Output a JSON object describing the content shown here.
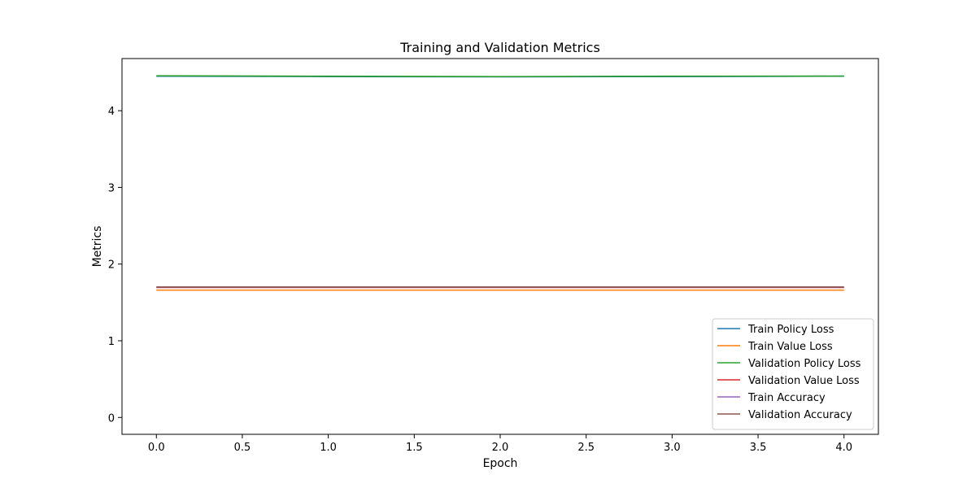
{
  "chart_data": {
    "type": "line",
    "title": "Training and Validation Metrics",
    "xlabel": "Epoch",
    "ylabel": "Metrics",
    "x": [
      0,
      1,
      2,
      3,
      4
    ],
    "xlim": [
      -0.2,
      4.2
    ],
    "ylim": [
      -0.22,
      4.68
    ],
    "xticks": [
      0.0,
      0.5,
      1.0,
      1.5,
      2.0,
      2.5,
      3.0,
      3.5,
      4.0
    ],
    "xtick_labels": [
      "0.0",
      "0.5",
      "1.0",
      "1.5",
      "2.0",
      "2.5",
      "3.0",
      "3.5",
      "4.0"
    ],
    "yticks": [
      0,
      1,
      2,
      3,
      4
    ],
    "ytick_labels": [
      "0",
      "1",
      "2",
      "3",
      "4"
    ],
    "grid": false,
    "legend_position": "bottom-right",
    "series": [
      {
        "name": "Train Policy Loss",
        "color": "#1f77b4",
        "values": [
          4.45,
          4.445,
          4.442,
          4.445,
          4.45
        ]
      },
      {
        "name": "Train Value Loss",
        "color": "#ff7f0e",
        "values": [
          1.66,
          1.66,
          1.66,
          1.66,
          1.66
        ]
      },
      {
        "name": "Validation Policy Loss",
        "color": "#2ca02c",
        "values": [
          4.455,
          4.45,
          4.445,
          4.45,
          4.452
        ]
      },
      {
        "name": "Validation Value Loss",
        "color": "#d62728",
        "values": [
          1.695,
          1.695,
          1.695,
          1.695,
          1.695
        ]
      },
      {
        "name": "Train Accuracy",
        "color": "#9467bd",
        "values": [
          1.7,
          1.7,
          1.7,
          1.7,
          1.7
        ]
      },
      {
        "name": "Validation Accuracy",
        "color": "#8c564b",
        "values": [
          1.7,
          1.7,
          1.7,
          1.7,
          1.7
        ]
      }
    ]
  }
}
